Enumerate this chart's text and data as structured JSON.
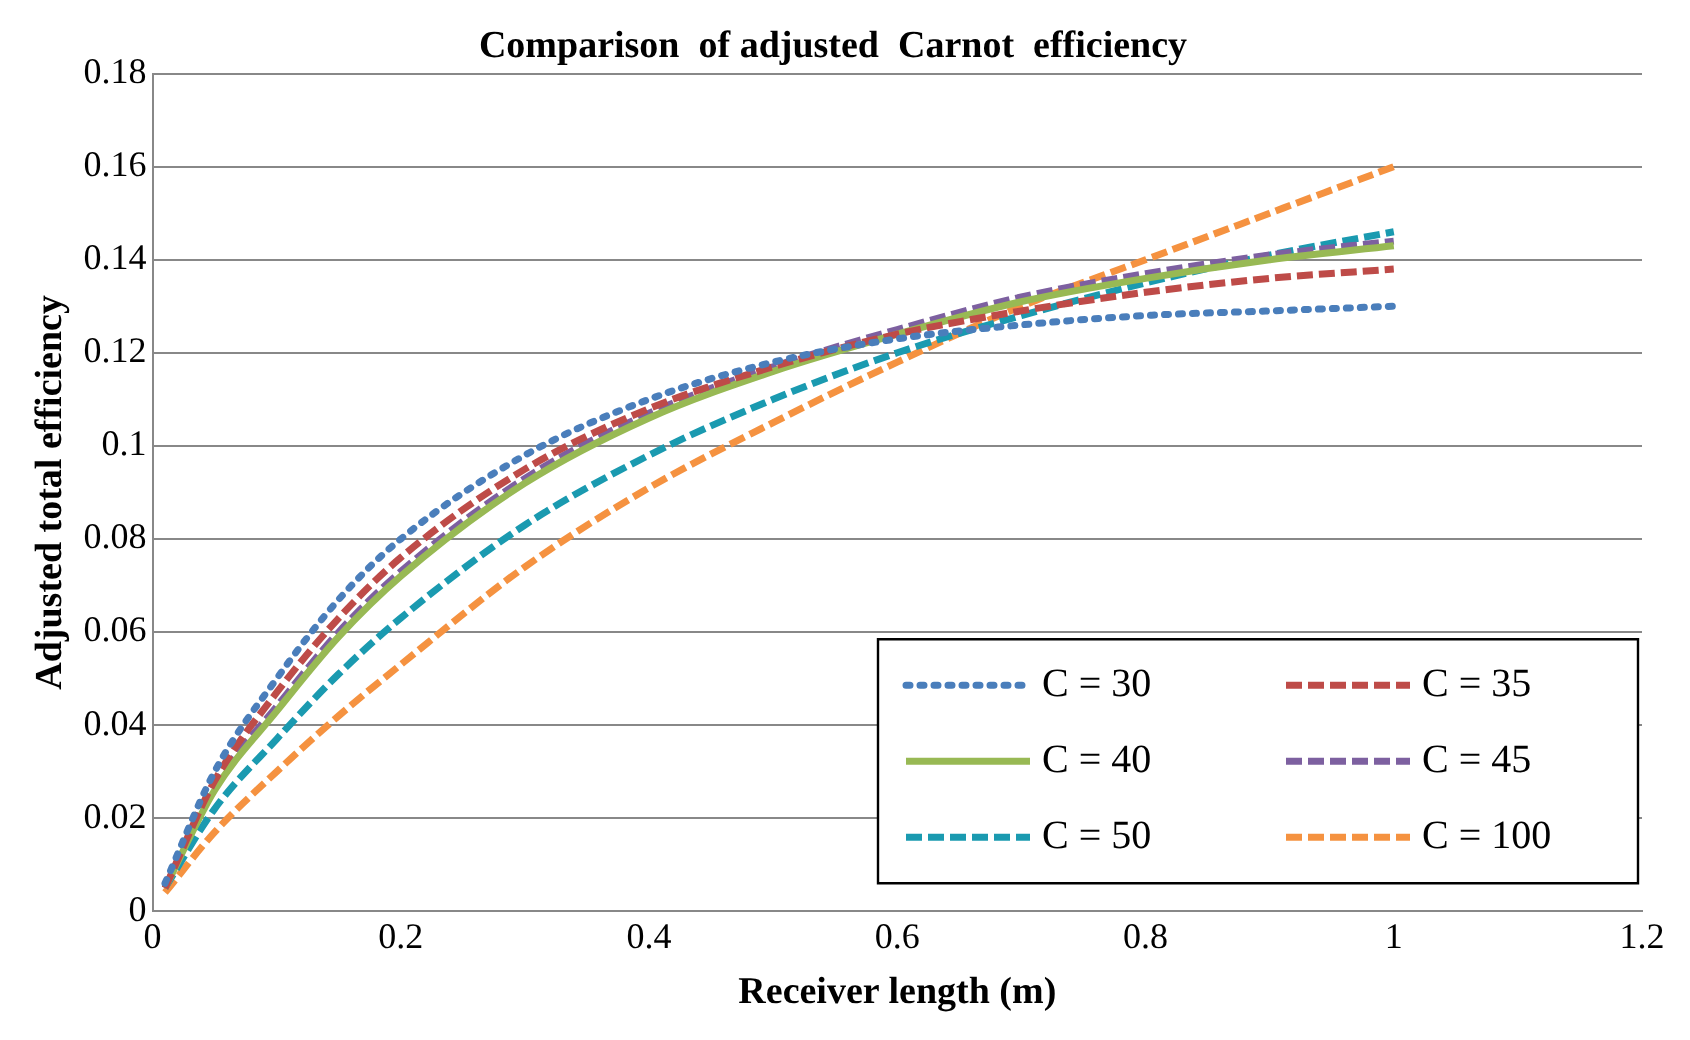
{
  "chart_data": {
    "type": "line",
    "title": "Comparison  of adjusted  Carnot  efficiency",
    "xlabel": "Receiver length (m)",
    "ylabel": "Adjusted total efficiency",
    "x": [
      0.01,
      0.05,
      0.1,
      0.15,
      0.2,
      0.3,
      0.4,
      0.5,
      0.6,
      0.7,
      0.8,
      0.9,
      1.0
    ],
    "series": [
      {
        "name": "C = 30",
        "color": "#4a7ebb",
        "line_style": "dotted",
        "values": [
          0.006,
          0.03,
          0.05,
          0.067,
          0.08,
          0.098,
          0.11,
          0.118,
          0.123,
          0.126,
          0.128,
          0.129,
          0.13
        ]
      },
      {
        "name": "C = 35",
        "color": "#be4b48",
        "line_style": "dashed",
        "values": [
          0.005,
          0.028,
          0.047,
          0.063,
          0.076,
          0.095,
          0.108,
          0.117,
          0.124,
          0.129,
          0.133,
          0.136,
          0.138
        ]
      },
      {
        "name": "C = 40",
        "color": "#98b954",
        "line_style": "solid",
        "values": [
          0.005,
          0.026,
          0.043,
          0.059,
          0.072,
          0.092,
          0.106,
          0.116,
          0.124,
          0.131,
          0.136,
          0.14,
          0.143
        ]
      },
      {
        "name": "C = 45",
        "color": "#7d60a0",
        "line_style": "dashed",
        "values": [
          0.005,
          0.027,
          0.044,
          0.06,
          0.073,
          0.093,
          0.107,
          0.117,
          0.125,
          0.132,
          0.137,
          0.141,
          0.144
        ]
      },
      {
        "name": "C = 50",
        "color": "#1a9ab0",
        "line_style": "dashed",
        "values": [
          0.005,
          0.022,
          0.037,
          0.051,
          0.063,
          0.083,
          0.098,
          0.11,
          0.12,
          0.128,
          0.135,
          0.141,
          0.146
        ]
      },
      {
        "name": "C = 100",
        "color": "#f59240",
        "line_style": "dashed",
        "values": [
          0.004,
          0.017,
          0.03,
          0.042,
          0.053,
          0.074,
          0.091,
          0.105,
          0.118,
          0.13,
          0.14,
          0.15,
          0.16
        ]
      }
    ],
    "xlim": [
      0,
      1.2
    ],
    "xticks": [
      0,
      0.2,
      0.4,
      0.6,
      0.8,
      1,
      1.2
    ],
    "ylim": [
      0,
      0.18
    ],
    "yticks": [
      0,
      0.02,
      0.04,
      0.06,
      0.08,
      0.1,
      0.12,
      0.14,
      0.16,
      0.18
    ],
    "grid": "y",
    "legend": "bottom right",
    "marker": "none"
  }
}
